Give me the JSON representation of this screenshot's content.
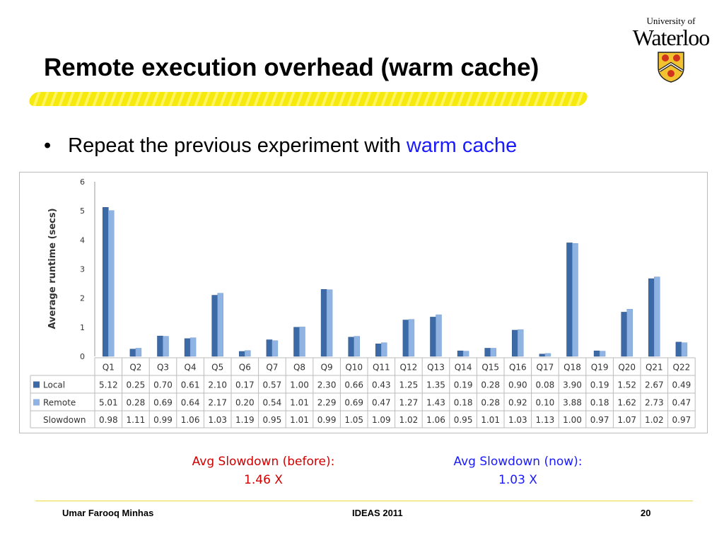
{
  "slide": {
    "title": "Remote execution overhead (warm cache)",
    "bullet_prefix": "Repeat the previous experiment with ",
    "bullet_accent": "warm cache",
    "logo_top": "University of",
    "logo_main": "Waterloo",
    "avg_before_label": "Avg Slowdown (before):",
    "avg_before_value": "1.46 X",
    "avg_now_label": "Avg Slowdown (now):",
    "avg_now_value": "1.03 X",
    "footer_left": "Umar Farooq Minhas",
    "footer_center": "IDEAS 2011",
    "footer_right": "20"
  },
  "chart_data": {
    "type": "bar",
    "ylabel": "Average runtime (secs)",
    "ylim": [
      0,
      6
    ],
    "yticks": [
      "0",
      "1",
      "2",
      "3",
      "4",
      "5",
      "6"
    ],
    "grid": true,
    "categories": [
      "Q1",
      "Q2",
      "Q3",
      "Q4",
      "Q5",
      "Q6",
      "Q7",
      "Q8",
      "Q9",
      "Q10",
      "Q11",
      "Q12",
      "Q13",
      "Q14",
      "Q15",
      "Q16",
      "Q17",
      "Q18",
      "Q19",
      "Q20",
      "Q21",
      "Q22"
    ],
    "series": [
      {
        "name": "Local",
        "color": "#3c6aa6",
        "values": [
          5.12,
          0.25,
          0.7,
          0.61,
          2.1,
          0.17,
          0.57,
          1.0,
          2.3,
          0.66,
          0.43,
          1.25,
          1.35,
          0.19,
          0.28,
          0.9,
          0.08,
          3.9,
          0.19,
          1.52,
          2.67,
          0.49
        ]
      },
      {
        "name": "Remote",
        "color": "#8fb4e3",
        "values": [
          5.01,
          0.28,
          0.69,
          0.64,
          2.17,
          0.2,
          0.54,
          1.01,
          2.29,
          0.69,
          0.47,
          1.27,
          1.43,
          0.18,
          0.28,
          0.92,
          0.1,
          3.88,
          0.18,
          1.62,
          2.73,
          0.47
        ]
      }
    ],
    "table_rows": [
      {
        "name": "Local",
        "values": [
          "5.12",
          "0.25",
          "0.70",
          "0.61",
          "2.10",
          "0.17",
          "0.57",
          "1.00",
          "2.30",
          "0.66",
          "0.43",
          "1.25",
          "1.35",
          "0.19",
          "0.28",
          "0.90",
          "0.08",
          "3.90",
          "0.19",
          "1.52",
          "2.67",
          "0.49"
        ]
      },
      {
        "name": "Remote",
        "values": [
          "5.01",
          "0.28",
          "0.69",
          "0.64",
          "2.17",
          "0.20",
          "0.54",
          "1.01",
          "2.29",
          "0.69",
          "0.47",
          "1.27",
          "1.43",
          "0.18",
          "0.28",
          "0.92",
          "0.10",
          "3.88",
          "0.18",
          "1.62",
          "2.73",
          "0.47"
        ]
      },
      {
        "name": "Slowdown",
        "values": [
          "0.98",
          "1.11",
          "0.99",
          "1.06",
          "1.03",
          "1.19",
          "0.95",
          "1.01",
          "0.99",
          "1.05",
          "1.09",
          "1.02",
          "1.06",
          "0.95",
          "1.01",
          "1.03",
          "1.13",
          "1.00",
          "0.97",
          "1.07",
          "1.02",
          "0.97"
        ]
      }
    ]
  }
}
